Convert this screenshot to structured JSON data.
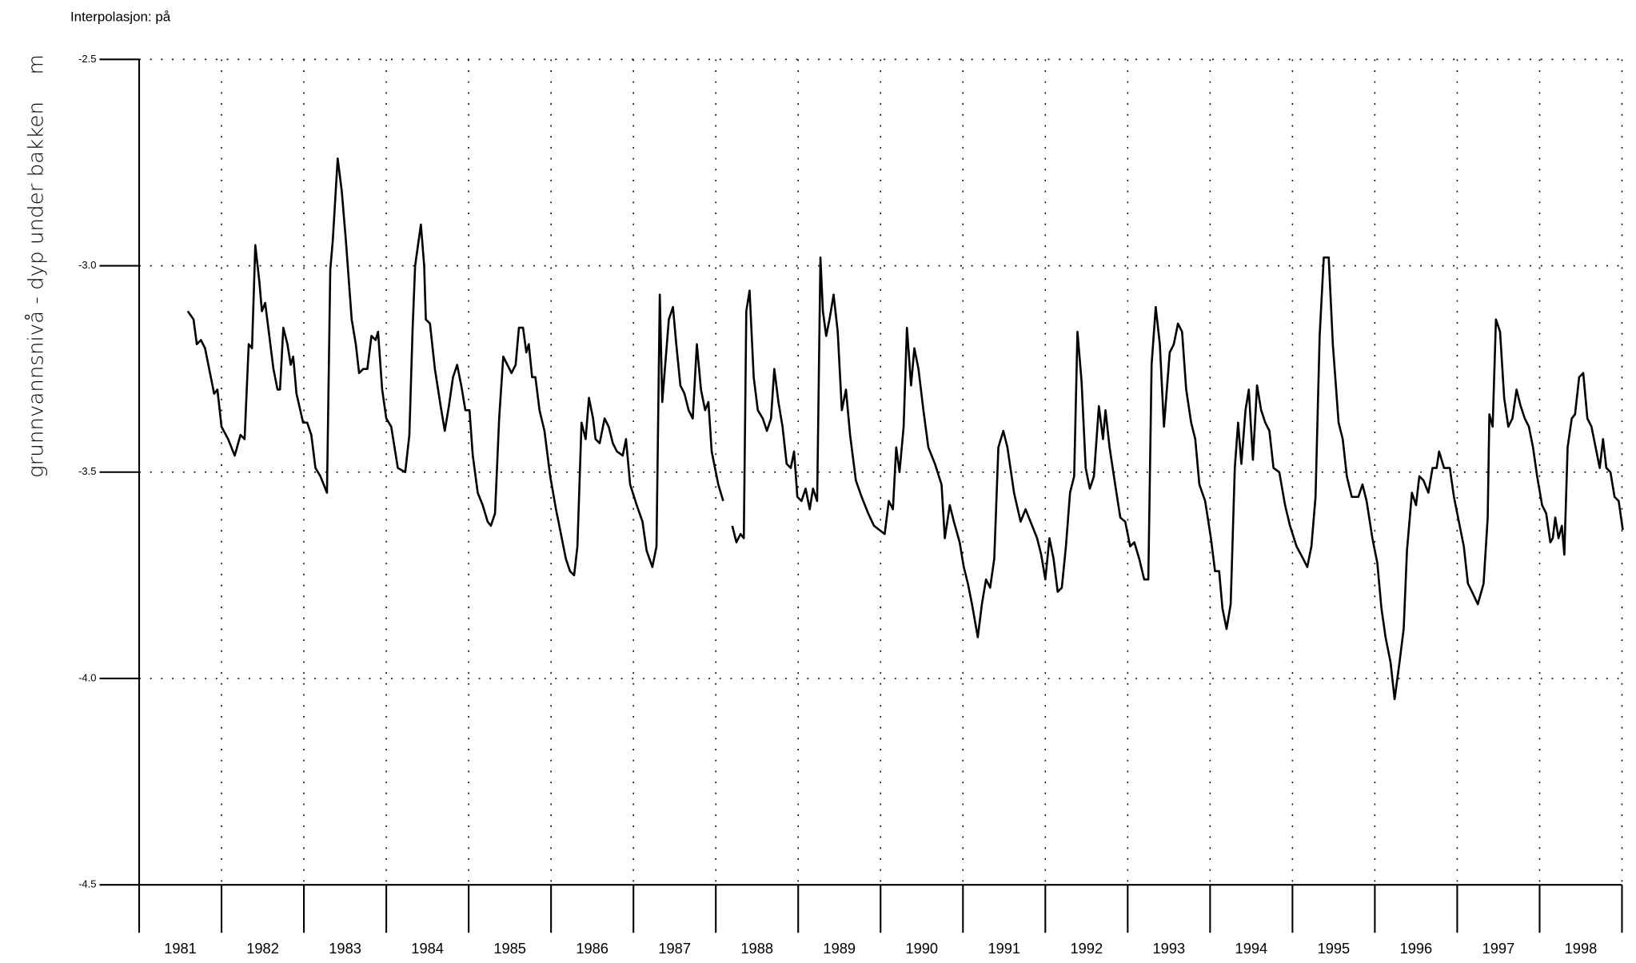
{
  "chart_data": {
    "type": "line",
    "title": "Interpolasjon: på",
    "y_label": "grunnvannsnivå - dyp under bakken",
    "y_unit": "m",
    "xlim": [
      1981,
      1999
    ],
    "xticks": [
      1981,
      1982,
      1983,
      1984,
      1985,
      1986,
      1987,
      1988,
      1989,
      1990,
      1991,
      1992,
      1993,
      1994,
      1995,
      1996,
      1997,
      1998
    ],
    "ylim": [
      -4.5,
      -2.5
    ],
    "yticks": [
      -2.5,
      {
        "value": -3.0,
        "label": "-3.0"
      },
      -3.5,
      {
        "value": -4.0,
        "label": "-4.0"
      },
      -4.5
    ],
    "grid": true,
    "series": [
      {
        "color": "#000000",
        "x": [
          1981.59,
          1981.66,
          1981.7,
          1981.75,
          1981.8,
          1981.85,
          1981.91,
          1981.95,
          1982.0,
          1982.08,
          1982.16,
          1982.23,
          1982.28,
          1982.33,
          1982.37,
          1982.41,
          1982.46,
          1982.49,
          1982.53,
          1982.58,
          1982.63,
          1982.68,
          1982.71,
          1982.75,
          1982.8,
          1982.84,
          1982.87,
          1982.91,
          1982.99,
          1983.04,
          1983.09,
          1983.14,
          1983.2,
          1983.28,
          1983.32,
          1983.35,
          1983.41,
          1983.46,
          1983.51,
          1983.58,
          1983.63,
          1983.67,
          1983.72,
          1983.77,
          1983.82,
          1983.87,
          1983.9,
          1983.95,
          1984.0,
          1984.06,
          1984.14,
          1984.23,
          1984.28,
          1984.32,
          1984.35,
          1984.42,
          1984.46,
          1984.48,
          1984.53,
          1984.59,
          1984.66,
          1984.71,
          1984.76,
          1984.81,
          1984.86,
          1984.91,
          1984.96,
          1985.01,
          1985.05,
          1985.11,
          1985.17,
          1985.23,
          1985.27,
          1985.32,
          1985.37,
          1985.42,
          1985.47,
          1985.52,
          1985.57,
          1985.61,
          1985.66,
          1985.7,
          1985.73,
          1985.77,
          1985.81,
          1985.86,
          1985.92,
          1985.99,
          1986.06,
          1986.13,
          1986.18,
          1986.23,
          1986.28,
          1986.32,
          1986.37,
          1986.42,
          1986.46,
          1986.51,
          1986.54,
          1986.59,
          1986.65,
          1986.7,
          1986.75,
          1986.8,
          1986.87,
          1986.91,
          1986.96,
          1987.04,
          1987.11,
          1987.16,
          1987.23,
          1987.28,
          1987.32,
          1987.35,
          1987.39,
          1987.43,
          1987.48,
          1987.52,
          1987.57,
          1987.62,
          1987.67,
          1987.72,
          1987.77,
          1987.82,
          1987.87,
          1987.91,
          1987.95,
          1988.03,
          1988.09,
          null,
          1988.2,
          1988.25,
          1988.3,
          1988.34,
          1988.37,
          1988.41,
          1988.46,
          1988.51,
          1988.57,
          1988.62,
          1988.67,
          1988.71,
          1988.76,
          1988.81,
          1988.86,
          1988.91,
          1988.95,
          1988.99,
          1989.04,
          1989.09,
          1989.14,
          1989.18,
          1989.23,
          1989.27,
          1989.3,
          1989.34,
          1989.38,
          1989.43,
          1989.48,
          1989.53,
          1989.58,
          1989.63,
          1989.7,
          1989.77,
          1989.85,
          1989.92,
          1990.05,
          1990.1,
          1990.15,
          1990.19,
          1990.23,
          1990.28,
          1990.32,
          1990.37,
          1990.41,
          1990.46,
          1990.52,
          1990.58,
          1990.66,
          1990.74,
          1990.78,
          1990.84,
          1990.89,
          1990.96,
          1991.01,
          1991.06,
          1991.11,
          1991.18,
          1991.23,
          1991.28,
          1991.33,
          1991.38,
          1991.43,
          1991.49,
          1991.54,
          1991.62,
          1991.7,
          1991.76,
          1991.82,
          1991.9,
          1991.95,
          1992.0,
          1992.05,
          1992.1,
          1992.15,
          1992.2,
          1992.25,
          1992.3,
          1992.35,
          1992.39,
          1992.44,
          1992.49,
          1992.54,
          1992.59,
          1992.65,
          1992.7,
          1992.73,
          1992.78,
          1992.84,
          1992.91,
          1992.97,
          1993.03,
          1993.08,
          1993.14,
          1993.2,
          1993.25,
          1993.29,
          1993.34,
          1993.39,
          1993.44,
          1993.51,
          1993.56,
          1993.61,
          1993.66,
          1993.71,
          1993.77,
          1993.82,
          1993.87,
          1993.94,
          1994.01,
          1994.06,
          1994.11,
          1994.15,
          1994.2,
          1994.25,
          1994.3,
          1994.34,
          1994.38,
          1994.43,
          1994.47,
          1994.52,
          1994.57,
          1994.62,
          1994.67,
          1994.72,
          1994.77,
          1994.84,
          1994.91,
          1994.97,
          1995.05,
          1995.13,
          1995.18,
          1995.23,
          1995.28,
          1995.33,
          1995.38,
          1995.44,
          1995.49,
          1995.56,
          1995.61,
          1995.66,
          1995.72,
          1995.8,
          1995.85,
          1995.9,
          1995.97,
          1996.03,
          1996.08,
          1996.13,
          1996.19,
          1996.24,
          1996.3,
          1996.35,
          1996.39,
          1996.45,
          1996.5,
          1996.54,
          1996.59,
          1996.65,
          1996.7,
          1996.75,
          1996.78,
          1996.84,
          1996.91,
          1996.96,
          1997.03,
          1997.08,
          1997.13,
          1997.18,
          1997.25,
          1997.32,
          1997.37,
          1997.39,
          1997.43,
          1997.47,
          1997.52,
          1997.57,
          1997.62,
          1997.67,
          1997.72,
          1997.77,
          1997.82,
          1997.87,
          1997.92,
          1997.97,
          1998.03,
          1998.08,
          1998.13,
          1998.16,
          1998.19,
          1998.23,
          1998.27,
          1998.3,
          1998.34,
          1998.39,
          1998.43,
          1998.48,
          1998.53,
          1998.58,
          1998.63,
          1998.68,
          1998.73,
          1998.77,
          1998.81,
          1998.86,
          1998.91,
          1998.96,
          1999.01
        ],
        "values": [
          -3.11,
          -3.13,
          -3.19,
          -3.18,
          -3.2,
          -3.25,
          -3.31,
          -3.3,
          -3.39,
          -3.42,
          -3.46,
          -3.41,
          -3.42,
          -3.19,
          -3.2,
          -2.95,
          -3.04,
          -3.11,
          -3.09,
          -3.17,
          -3.25,
          -3.3,
          -3.3,
          -3.15,
          -3.19,
          -3.24,
          -3.22,
          -3.31,
          -3.38,
          -3.38,
          -3.41,
          -3.49,
          -3.51,
          -3.55,
          -3.01,
          -2.94,
          -2.74,
          -2.82,
          -2.94,
          -3.13,
          -3.19,
          -3.26,
          -3.25,
          -3.25,
          -3.17,
          -3.18,
          -3.16,
          -3.3,
          -3.37,
          -3.39,
          -3.49,
          -3.5,
          -3.41,
          -3.15,
          -3.0,
          -2.9,
          -3.0,
          -3.13,
          -3.14,
          -3.25,
          -3.34,
          -3.4,
          -3.34,
          -3.27,
          -3.24,
          -3.29,
          -3.35,
          -3.35,
          -3.46,
          -3.55,
          -3.58,
          -3.62,
          -3.63,
          -3.6,
          -3.37,
          -3.22,
          -3.24,
          -3.26,
          -3.24,
          -3.15,
          -3.15,
          -3.21,
          -3.19,
          -3.27,
          -3.27,
          -3.35,
          -3.4,
          -3.51,
          -3.59,
          -3.66,
          -3.71,
          -3.74,
          -3.75,
          -3.68,
          -3.38,
          -3.42,
          -3.32,
          -3.37,
          -3.42,
          -3.43,
          -3.37,
          -3.39,
          -3.43,
          -3.45,
          -3.46,
          -3.42,
          -3.53,
          -3.58,
          -3.62,
          -3.69,
          -3.73,
          -3.68,
          -3.07,
          -3.33,
          -3.23,
          -3.13,
          -3.1,
          -3.19,
          -3.29,
          -3.31,
          -3.35,
          -3.37,
          -3.19,
          -3.3,
          -3.35,
          -3.33,
          -3.45,
          -3.53,
          -3.57,
          null,
          -3.63,
          -3.67,
          -3.65,
          -3.66,
          -3.11,
          -3.06,
          -3.27,
          -3.35,
          -3.37,
          -3.4,
          -3.37,
          -3.25,
          -3.33,
          -3.39,
          -3.48,
          -3.49,
          -3.45,
          -3.56,
          -3.57,
          -3.54,
          -3.59,
          -3.54,
          -3.57,
          -2.98,
          -3.11,
          -3.17,
          -3.13,
          -3.07,
          -3.16,
          -3.35,
          -3.3,
          -3.41,
          -3.52,
          -3.56,
          -3.6,
          -3.63,
          -3.65,
          -3.57,
          -3.59,
          -3.44,
          -3.5,
          -3.39,
          -3.15,
          -3.29,
          -3.2,
          -3.25,
          -3.35,
          -3.44,
          -3.48,
          -3.53,
          -3.66,
          -3.58,
          -3.62,
          -3.67,
          -3.73,
          -3.77,
          -3.82,
          -3.9,
          -3.82,
          -3.76,
          -3.78,
          -3.71,
          -3.44,
          -3.4,
          -3.44,
          -3.55,
          -3.62,
          -3.59,
          -3.62,
          -3.66,
          -3.7,
          -3.76,
          -3.66,
          -3.71,
          -3.79,
          -3.78,
          -3.68,
          -3.55,
          -3.51,
          -3.16,
          -3.28,
          -3.49,
          -3.54,
          -3.51,
          -3.34,
          -3.42,
          -3.35,
          -3.44,
          -3.52,
          -3.61,
          -3.62,
          -3.68,
          -3.67,
          -3.71,
          -3.76,
          -3.76,
          -3.24,
          -3.1,
          -3.19,
          -3.39,
          -3.21,
          -3.19,
          -3.14,
          -3.16,
          -3.3,
          -3.38,
          -3.42,
          -3.53,
          -3.57,
          -3.66,
          -3.74,
          -3.74,
          -3.83,
          -3.88,
          -3.82,
          -3.49,
          -3.38,
          -3.48,
          -3.35,
          -3.3,
          -3.47,
          -3.29,
          -3.35,
          -3.38,
          -3.4,
          -3.49,
          -3.5,
          -3.58,
          -3.63,
          -3.68,
          -3.71,
          -3.73,
          -3.68,
          -3.56,
          -3.17,
          -2.98,
          -2.98,
          -3.19,
          -3.38,
          -3.42,
          -3.51,
          -3.56,
          -3.56,
          -3.53,
          -3.57,
          -3.66,
          -3.72,
          -3.83,
          -3.9,
          -3.96,
          -4.05,
          -3.96,
          -3.88,
          -3.69,
          -3.55,
          -3.58,
          -3.51,
          -3.52,
          -3.55,
          -3.49,
          -3.49,
          -3.45,
          -3.49,
          -3.49,
          -3.56,
          -3.63,
          -3.68,
          -3.77,
          -3.79,
          -3.82,
          -3.77,
          -3.61,
          -3.36,
          -3.39,
          -3.13,
          -3.16,
          -3.32,
          -3.39,
          -3.37,
          -3.3,
          -3.34,
          -3.37,
          -3.39,
          -3.44,
          -3.51,
          -3.58,
          -3.6,
          -3.67,
          -3.66,
          -3.61,
          -3.66,
          -3.63,
          -3.7,
          -3.44,
          -3.37,
          -3.36,
          -3.27,
          -3.26,
          -3.37,
          -3.39,
          -3.44,
          -3.49,
          -3.42,
          -3.49,
          -3.5,
          -3.56,
          -3.57,
          -3.64
        ]
      }
    ]
  }
}
